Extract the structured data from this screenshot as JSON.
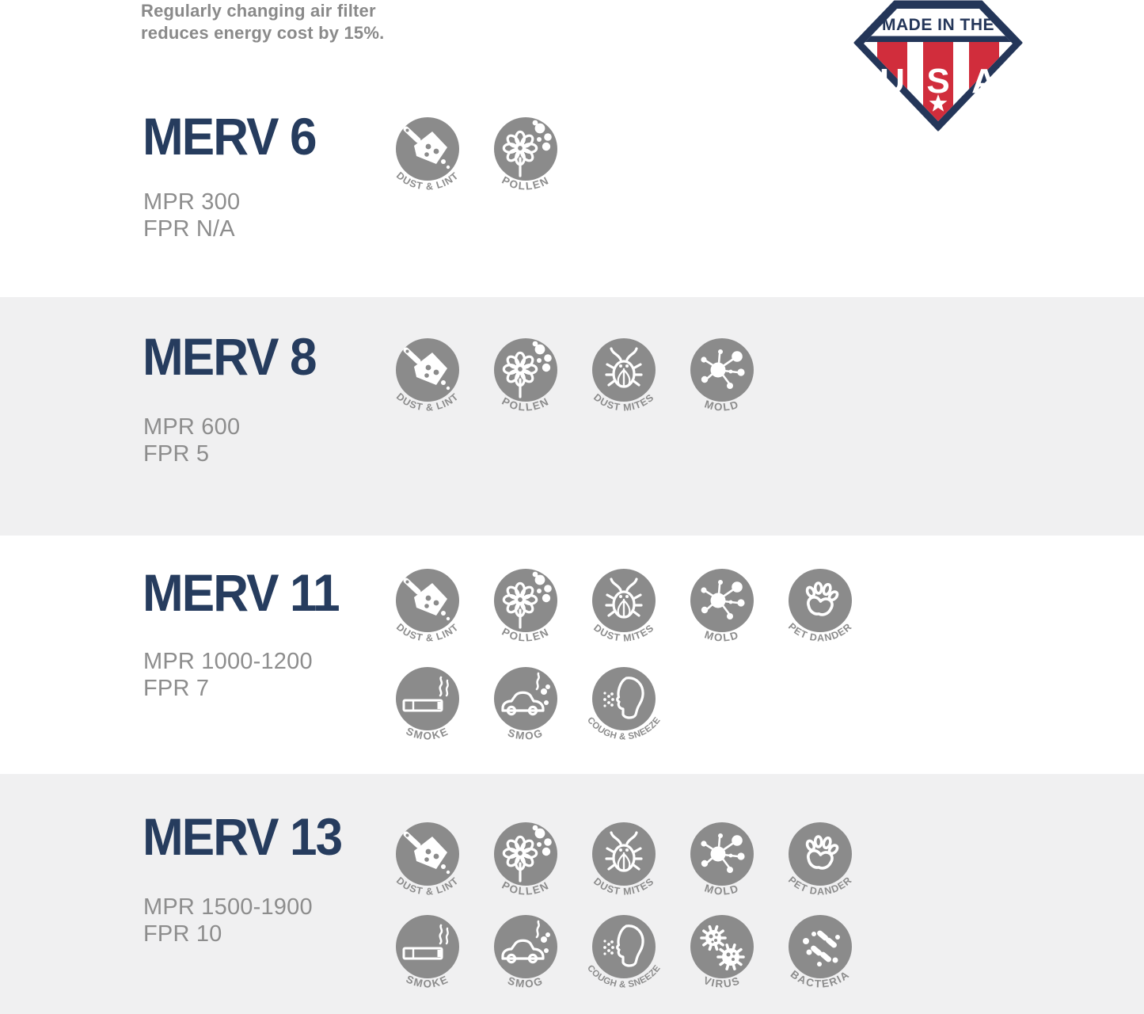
{
  "header": {
    "note_line1": "Regularly changing air filter",
    "note_line2": "reduces energy cost by 15%."
  },
  "badge": {
    "top_text": "MADE IN THE",
    "letters": [
      "U",
      "S",
      "A"
    ],
    "star": "★"
  },
  "sections": [
    {
      "id": "merv6",
      "title": "MERV 6",
      "mpr": "MPR 300",
      "fpr": "FPR N/A",
      "bg": "white",
      "icon_rows": [
        [
          "dust-lint",
          "pollen"
        ]
      ]
    },
    {
      "id": "merv8",
      "title": "MERV 8",
      "mpr": "MPR 600",
      "fpr": "FPR 5",
      "bg": "gray",
      "icon_rows": [
        [
          "dust-lint",
          "pollen",
          "dust-mites",
          "mold"
        ]
      ]
    },
    {
      "id": "merv11",
      "title": "MERV 11",
      "mpr": "MPR 1000-1200",
      "fpr": "FPR 7",
      "bg": "white",
      "icon_rows": [
        [
          "dust-lint",
          "pollen",
          "dust-mites",
          "mold",
          "pet-dander"
        ],
        [
          "smoke",
          "smog",
          "cough-sneeze"
        ]
      ]
    },
    {
      "id": "merv13",
      "title": "MERV 13",
      "mpr": "MPR 1500-1900",
      "fpr": "FPR 10",
      "bg": "gray",
      "icon_rows": [
        [
          "dust-lint",
          "pollen",
          "dust-mites",
          "mold",
          "pet-dander"
        ],
        [
          "smoke",
          "smog",
          "cough-sneeze",
          "virus",
          "bacteria"
        ]
      ]
    }
  ],
  "icons": {
    "dust-lint": {
      "label": "DUST & LINT"
    },
    "pollen": {
      "label": "POLLEN"
    },
    "dust-mites": {
      "label": "DUST MITES"
    },
    "mold": {
      "label": "MOLD"
    },
    "pet-dander": {
      "label": "PET DANDER"
    },
    "smoke": {
      "label": "SMOKE"
    },
    "smog": {
      "label": "SMOG"
    },
    "cough-sneeze": {
      "label": "COUGH & SNEEZE"
    },
    "virus": {
      "label": "VIRUS"
    },
    "bacteria": {
      "label": "BACTERIA"
    }
  },
  "colors": {
    "navy": "#263c5e",
    "badge_navy": "#243659",
    "badge_red": "#d12d3c",
    "text_gray": "#8a8a8a",
    "icon_gray": "#8b8b8b",
    "label_gray": "#8c8c8c",
    "section_alt_bg": "#f0f0f1",
    "white": "#ffffff"
  }
}
